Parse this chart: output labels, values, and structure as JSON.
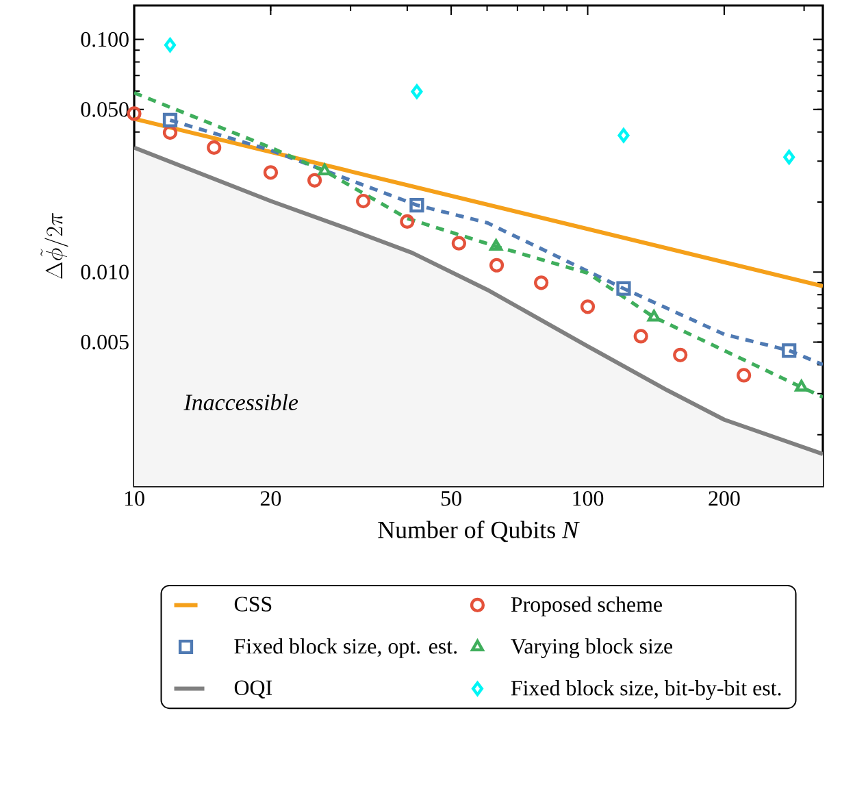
{
  "chart_data": {
    "type": "line",
    "xlabel": "Number of Qubits *N*",
    "ylabel": "\\Delta\\tilde{\\phi}/2\\pi",
    "log": "xy",
    "xlim": [
      10,
      330
    ],
    "ylim": [
      0.0012,
      0.14
    ],
    "xticks": [
      10,
      20,
      50,
      100,
      200
    ],
    "yticks": [
      {
        "value": 0.005,
        "label": "0.005"
      },
      {
        "value": 0.01,
        "label": "0.010"
      },
      {
        "value": 0.05,
        "label": "0.050"
      },
      {
        "value": 0.1,
        "label": "0.100"
      }
    ],
    "legend": "bottom",
    "annotations": [
      "*Inaccessible*"
    ],
    "series": [
      {
        "name": "CSS",
        "color": "#f5a01a",
        "x": [
          10,
          330
        ],
        "values": [
          0.0456,
          0.0087
        ]
      },
      {
        "name": "Proposed scheme",
        "type": "scatter",
        "marker": "circle",
        "color": "#e4523b",
        "x": [
          10,
          12,
          15,
          20,
          25,
          32,
          40,
          52,
          63,
          79,
          100,
          131,
          160,
          221
        ],
        "values": [
          0.048,
          0.0398,
          0.0343,
          0.0268,
          0.0248,
          0.0202,
          0.0165,
          0.0133,
          0.0107,
          0.009,
          0.0071,
          0.0053,
          0.0044,
          0.0036
        ]
      },
      {
        "line_style": "dashed",
        "color": "#4f7ab3",
        "x": [
          12,
          20,
          42,
          60,
          120,
          200,
          278,
          330
        ],
        "values": [
          0.045,
          0.0334,
          0.0194,
          0.0163,
          0.0085,
          0.0054,
          0.0046,
          0.004
        ]
      },
      {
        "name": "Fixed block size, opt. est.",
        "type": "scatter",
        "marker": "square",
        "color": "#4f7ab3",
        "x": [
          12,
          42,
          120,
          278
        ],
        "values": [
          0.045,
          0.0194,
          0.0085,
          0.0046
        ]
      },
      {
        "line_style": "dashed",
        "color": "#3fae5c",
        "x": [
          10,
          20,
          26.3,
          40,
          62.8,
          100,
          140,
          200,
          296,
          330
        ],
        "values": [
          0.059,
          0.0343,
          0.0272,
          0.017,
          0.0129,
          0.0099,
          0.0064,
          0.0046,
          0.0032,
          0.0029
        ]
      },
      {
        "name": "Varying block size",
        "type": "scatter",
        "marker": "triangle",
        "color": "#3fae5c",
        "x": [
          26.3,
          62.8,
          140,
          296
        ],
        "values": [
          0.0272,
          0.0129,
          0.0064,
          0.0032
        ]
      },
      {
        "name": "OQI",
        "type": "area",
        "color": "#808080",
        "x": [
          10,
          20,
          30,
          41,
          60,
          100,
          150,
          200,
          330
        ],
        "values": [
          0.0343,
          0.0202,
          0.0152,
          0.0121,
          0.0084,
          0.0048,
          0.0031,
          0.00232,
          0.00165
        ]
      },
      {
        "name": "Fixed block size, bit-by-bit est.",
        "type": "scatter",
        "marker": "diamond",
        "color": "#00f5f5",
        "x": [
          12,
          42,
          120,
          278
        ],
        "values": [
          0.0946,
          0.0597,
          0.0387,
          0.0312
        ]
      }
    ]
  }
}
